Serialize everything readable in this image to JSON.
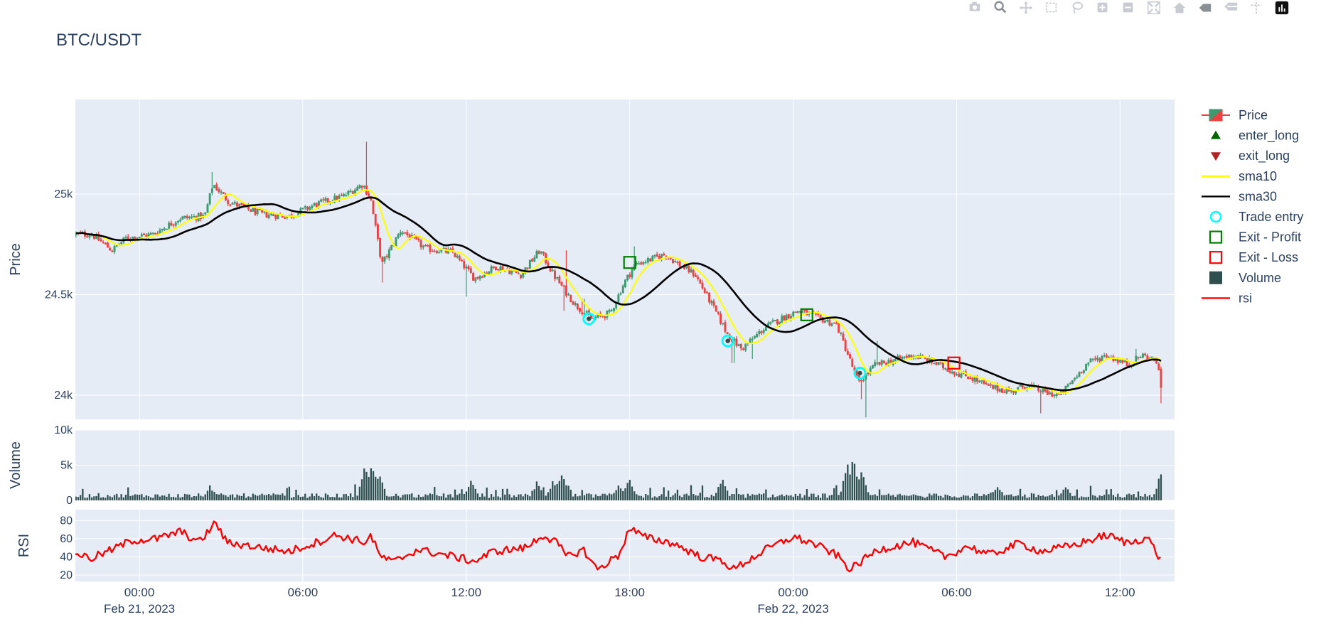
{
  "colors": {
    "plot_bg": "#E5ECF6",
    "grid": "#ffffff",
    "text": "#2a3f5f",
    "up": "#3D9970",
    "down": "#EF4040",
    "sma10": "#FFFF00",
    "sma30": "#000000",
    "volume": "#2F4F4F",
    "rsi": "#FF0000",
    "entry": "#00FFFF",
    "exit_profit": "#008000",
    "exit_loss": "#FF0000",
    "enter_long": "#006400",
    "exit_long": "#B22222"
  },
  "modebar": {
    "icons": [
      "camera-icon",
      "zoom-icon",
      "pan-icon",
      "box-select-icon",
      "lasso-icon",
      "zoom-in-icon",
      "zoom-out-icon",
      "autoscale-icon",
      "reset-axes-icon",
      "hover-closest-icon",
      "hover-compare-icon",
      "spike-lines-icon",
      "plotly-logo-icon"
    ]
  },
  "chart_data": {
    "type": "candlestick",
    "title": "BTC/USDT",
    "x_range_hours": [
      -2.35,
      38.0
    ],
    "x_ticks": [
      {
        "h": 0,
        "label": "00:00",
        "date": "Feb 21, 2023"
      },
      {
        "h": 6,
        "label": "06:00",
        "date": ""
      },
      {
        "h": 12,
        "label": "12:00",
        "date": ""
      },
      {
        "h": 18,
        "label": "18:00",
        "date": ""
      },
      {
        "h": 24,
        "label": "00:00",
        "date": "Feb 22, 2023"
      },
      {
        "h": 30,
        "label": "06:00",
        "date": ""
      },
      {
        "h": 36,
        "label": "12:00",
        "date": ""
      }
    ],
    "price_panel": {
      "ylabel": "Price",
      "ylim": [
        23880,
        25470
      ],
      "ticks": [
        {
          "v": 24000,
          "label": "24k"
        },
        {
          "v": 24500,
          "label": "24.5k"
        },
        {
          "v": 25000,
          "label": "25k"
        }
      ],
      "close_anchors": [
        [
          -1.75,
          24800
        ],
        [
          -1,
          24720
        ],
        [
          -0.5,
          24780
        ],
        [
          0.5,
          24800
        ],
        [
          1.5,
          24880
        ],
        [
          2.4,
          24890
        ],
        [
          2.7,
          25050
        ],
        [
          3.3,
          24960
        ],
        [
          4.5,
          24900
        ],
        [
          5.5,
          24890
        ],
        [
          6.5,
          24950
        ],
        [
          7.5,
          24990
        ],
        [
          8.2,
          25050
        ],
        [
          8.5,
          24970
        ],
        [
          8.9,
          24650
        ],
        [
          9.6,
          24820
        ],
        [
          10.5,
          24730
        ],
        [
          11.5,
          24710
        ],
        [
          12.3,
          24580
        ],
        [
          13.1,
          24640
        ],
        [
          14.0,
          24600
        ],
        [
          14.7,
          24720
        ],
        [
          15.2,
          24600
        ],
        [
          16.0,
          24450
        ],
        [
          16.6,
          24380
        ],
        [
          17.3,
          24410
        ],
        [
          17.8,
          24560
        ],
        [
          18.2,
          24650
        ],
        [
          19.3,
          24700
        ],
        [
          19.8,
          24650
        ],
        [
          20.4,
          24600
        ],
        [
          21.1,
          24430
        ],
        [
          21.6,
          24300
        ],
        [
          22.1,
          24230
        ],
        [
          23.0,
          24340
        ],
        [
          23.7,
          24390
        ],
        [
          24.2,
          24420
        ],
        [
          25.0,
          24380
        ],
        [
          25.6,
          24350
        ],
        [
          26.4,
          24060
        ],
        [
          27.0,
          24150
        ],
        [
          27.6,
          24170
        ],
        [
          28.4,
          24200
        ],
        [
          29.2,
          24160
        ],
        [
          30.0,
          24110
        ],
        [
          30.5,
          24090
        ],
        [
          31.2,
          24040
        ],
        [
          32.0,
          24020
        ],
        [
          32.6,
          24050
        ],
        [
          33.3,
          24010
        ],
        [
          33.8,
          24000
        ],
        [
          34.3,
          24080
        ],
        [
          34.8,
          24160
        ],
        [
          35.5,
          24200
        ],
        [
          36.3,
          24150
        ],
        [
          36.8,
          24200
        ],
        [
          37.35,
          24170
        ],
        [
          37.5,
          24040
        ]
      ],
      "spikes": [
        [
          8.35,
          25260
        ],
        [
          8.95,
          24560
        ],
        [
          15.6,
          24420
        ],
        [
          15.7,
          24720
        ],
        [
          16.3,
          24480
        ],
        [
          18.2,
          24740
        ],
        [
          21.8,
          24160
        ],
        [
          22.5,
          24180
        ],
        [
          26.5,
          23980
        ],
        [
          26.7,
          23890
        ],
        [
          27.1,
          24270
        ],
        [
          33.1,
          23910
        ],
        [
          36.6,
          24230
        ],
        [
          37.5,
          23960
        ],
        [
          12.0,
          24490
        ],
        [
          2.7,
          25110
        ]
      ],
      "trade_entries": [
        [
          16.5,
          24380
        ],
        [
          21.6,
          24270
        ],
        [
          26.45,
          24110
        ]
      ],
      "exit_profit": [
        [
          18.0,
          24660
        ],
        [
          24.5,
          24400
        ]
      ],
      "exit_loss": [
        [
          29.9,
          24160
        ]
      ]
    },
    "volume_panel": {
      "ylabel": "Volume",
      "ylim": [
        0,
        10000
      ],
      "ticks": [
        {
          "v": 0,
          "label": "0"
        },
        {
          "v": 5000,
          "label": "5k"
        },
        {
          "v": 10000,
          "label": "10k"
        }
      ],
      "peaks": [
        [
          2.6,
          2300
        ],
        [
          8.3,
          5400
        ],
        [
          8.55,
          5600
        ],
        [
          8.8,
          4000
        ],
        [
          12.2,
          3200
        ],
        [
          14.6,
          2800
        ],
        [
          15.2,
          3000
        ],
        [
          15.5,
          4400
        ],
        [
          17.6,
          2600
        ],
        [
          18.0,
          3300
        ],
        [
          21.4,
          3400
        ],
        [
          26.0,
          5200
        ],
        [
          26.2,
          6200
        ],
        [
          26.5,
          4400
        ],
        [
          31.5,
          2300
        ],
        [
          34.0,
          2200
        ],
        [
          37.5,
          4000
        ]
      ]
    },
    "rsi_panel": {
      "ylabel": "RSI",
      "ylim": [
        13,
        92
      ],
      "ticks": [
        {
          "v": 20,
          "label": "20"
        },
        {
          "v": 40,
          "label": "40"
        },
        {
          "v": 60,
          "label": "60"
        },
        {
          "v": 80,
          "label": "80"
        }
      ],
      "anchors": [
        [
          -2.35,
          45
        ],
        [
          -1.8,
          38
        ],
        [
          -1,
          48
        ],
        [
          -0.3,
          58
        ],
        [
          0.7,
          60
        ],
        [
          1.5,
          68
        ],
        [
          2.2,
          56
        ],
        [
          2.8,
          78
        ],
        [
          3.2,
          56
        ],
        [
          4.5,
          50
        ],
        [
          5.5,
          46
        ],
        [
          6.7,
          58
        ],
        [
          7.2,
          64
        ],
        [
          8.3,
          56
        ],
        [
          8.5,
          64
        ],
        [
          8.8,
          42
        ],
        [
          9.3,
          34
        ],
        [
          10.2,
          48
        ],
        [
          11.6,
          40
        ],
        [
          12.3,
          35
        ],
        [
          13.0,
          46
        ],
        [
          14.2,
          50
        ],
        [
          14.8,
          64
        ],
        [
          15.3,
          56
        ],
        [
          15.7,
          40
        ],
        [
          16.3,
          48
        ],
        [
          16.8,
          26
        ],
        [
          17.6,
          42
        ],
        [
          18.0,
          72
        ],
        [
          18.5,
          62
        ],
        [
          19.6,
          55
        ],
        [
          20.6,
          40
        ],
        [
          21.4,
          36
        ],
        [
          21.8,
          26
        ],
        [
          23.0,
          48
        ],
        [
          24.0,
          62
        ],
        [
          24.7,
          55
        ],
        [
          25.6,
          42
        ],
        [
          26.1,
          26
        ],
        [
          27.1,
          48
        ],
        [
          28.4,
          56
        ],
        [
          29.6,
          40
        ],
        [
          30.4,
          52
        ],
        [
          31.2,
          42
        ],
        [
          32.3,
          55
        ],
        [
          33.1,
          46
        ],
        [
          34.2,
          52
        ],
        [
          35.5,
          64
        ],
        [
          36.3,
          55
        ],
        [
          37.0,
          62
        ],
        [
          37.5,
          36
        ]
      ]
    },
    "legend": [
      {
        "key": "price",
        "label": "Price"
      },
      {
        "key": "enter_long",
        "label": "enter_long"
      },
      {
        "key": "exit_long",
        "label": "exit_long"
      },
      {
        "key": "sma10",
        "label": "sma10"
      },
      {
        "key": "sma30",
        "label": "sma30"
      },
      {
        "key": "entry",
        "label": "Trade entry"
      },
      {
        "key": "exit_profit",
        "label": "Exit - Profit"
      },
      {
        "key": "exit_loss",
        "label": "Exit - Loss"
      },
      {
        "key": "volume",
        "label": "Volume"
      },
      {
        "key": "rsi",
        "label": "rsi"
      }
    ]
  }
}
